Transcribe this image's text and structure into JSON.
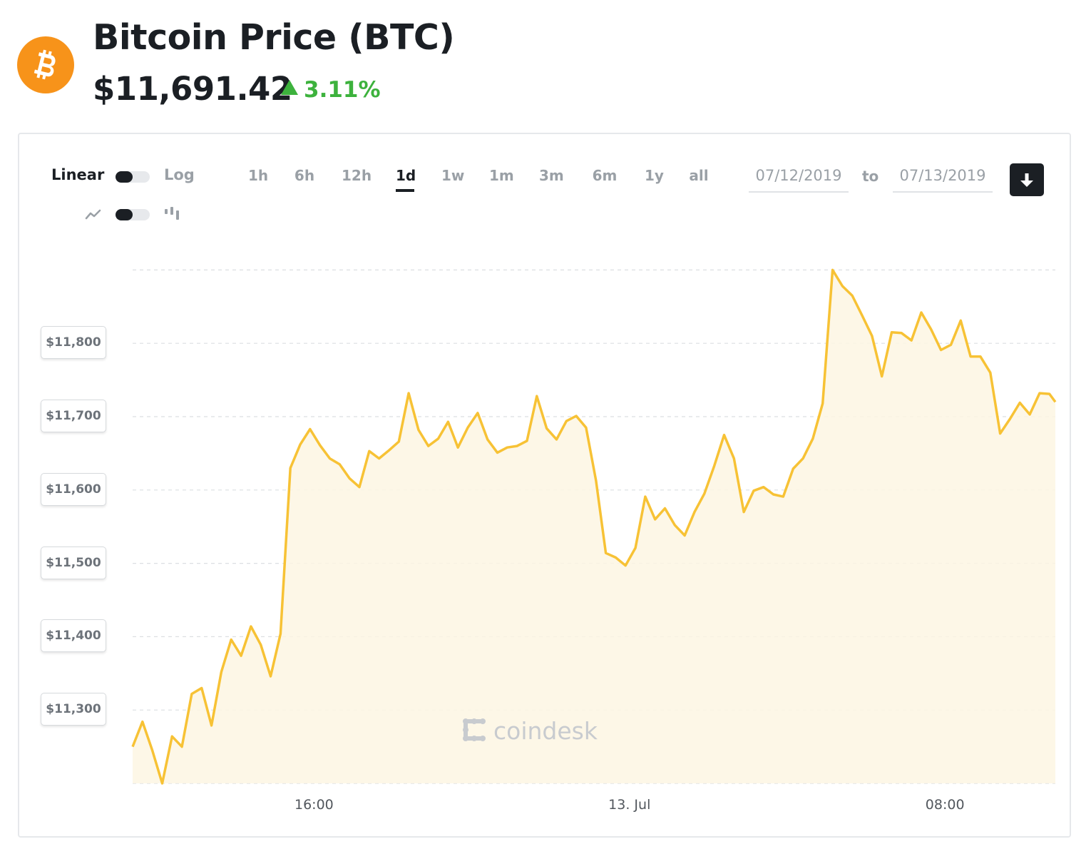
{
  "header": {
    "title": "Bitcoin Price (BTC)",
    "price": "$11,691.42",
    "change": "3.11%",
    "change_direction": "up"
  },
  "controls": {
    "scale_left": "Linear",
    "scale_right": "Log",
    "ranges": [
      "1h",
      "6h",
      "12h",
      "1d",
      "1w",
      "1m",
      "3m",
      "6m",
      "1y",
      "all"
    ],
    "active_range": "1d",
    "date_from": "07/12/2019",
    "date_to_label": "to",
    "date_to": "07/13/2019"
  },
  "watermark": "coindesk",
  "colors": {
    "line": "#f7c235",
    "area": "#fdf6e3",
    "logo": "#f7931a",
    "change": "#3db23d"
  },
  "chart_data": {
    "type": "area",
    "ytick_labels": [
      "$11,800",
      "$11,700",
      "$11,600",
      "$11,500",
      "$11,400",
      "$11,300"
    ],
    "ytick_values": [
      11800,
      11700,
      11600,
      11500,
      11400,
      11300
    ],
    "xtick_labels": [
      "16:00",
      "13. Jul",
      "08:00"
    ],
    "xtick_hours": [
      16,
      24,
      32
    ],
    "ylim": [
      11200,
      11900
    ],
    "xlim_hours": [
      11.4,
      34.8
    ],
    "grid": true,
    "series": [
      {
        "x_hours": [
          11.4,
          11.65,
          11.9,
          12.15,
          12.4,
          12.65,
          12.9,
          13.15,
          13.4,
          13.65,
          13.9,
          14.15,
          14.4,
          14.65,
          14.9,
          15.15,
          15.4,
          15.65,
          15.9,
          16.15,
          16.4,
          16.65,
          16.9,
          17.15,
          17.4,
          17.65,
          17.9,
          18.15,
          18.4,
          18.65,
          18.9,
          19.15,
          19.4,
          19.65,
          19.9,
          20.15,
          20.4,
          20.65,
          20.9,
          21.15,
          21.4,
          21.65,
          21.9,
          22.15,
          22.4,
          22.65,
          22.9,
          23.15,
          23.4,
          23.65,
          23.9,
          24.15,
          24.4,
          24.65,
          24.9,
          25.15,
          25.4,
          25.65,
          25.9,
          26.15,
          26.4,
          26.65,
          26.9,
          27.15,
          27.4,
          27.65,
          27.9,
          28.15,
          28.4,
          28.65,
          28.9,
          29.15,
          29.4,
          29.65,
          29.9,
          30.15,
          30.4,
          30.65,
          30.9,
          31.15,
          31.4,
          31.65,
          31.9,
          32.15,
          32.4,
          32.65,
          32.9,
          33.15,
          33.4,
          33.65,
          33.9,
          34.15,
          34.4,
          34.65,
          34.8
        ],
        "values": [
          11250,
          11284,
          11245,
          11200,
          11264,
          11250,
          11322,
          11330,
          11279,
          11352,
          11396,
          11374,
          11414,
          11389,
          11346,
          11404,
          11630,
          11662,
          11683,
          11661,
          11643,
          11635,
          11616,
          11604,
          11653,
          11643,
          11654,
          11666,
          11732,
          11682,
          11660,
          11670,
          11693,
          11658,
          11685,
          11705,
          11669,
          11651,
          11658,
          11660,
          11667,
          11728,
          11684,
          11669,
          11694,
          11701,
          11685,
          11613,
          11514,
          11508,
          11497,
          11521,
          11591,
          11560,
          11575,
          11552,
          11538,
          11570,
          11595,
          11633,
          11675,
          11643,
          11570,
          11599,
          11604,
          11594,
          11591,
          11629,
          11643,
          11670,
          11718,
          11900,
          11878,
          11865,
          11838,
          11810,
          11755,
          11815,
          11814,
          11804,
          11842,
          11819,
          11791,
          11798,
          11831,
          11782,
          11782,
          11760,
          11677,
          11697,
          11719,
          11703,
          11732,
          11731,
          11720
        ]
      }
    ]
  }
}
